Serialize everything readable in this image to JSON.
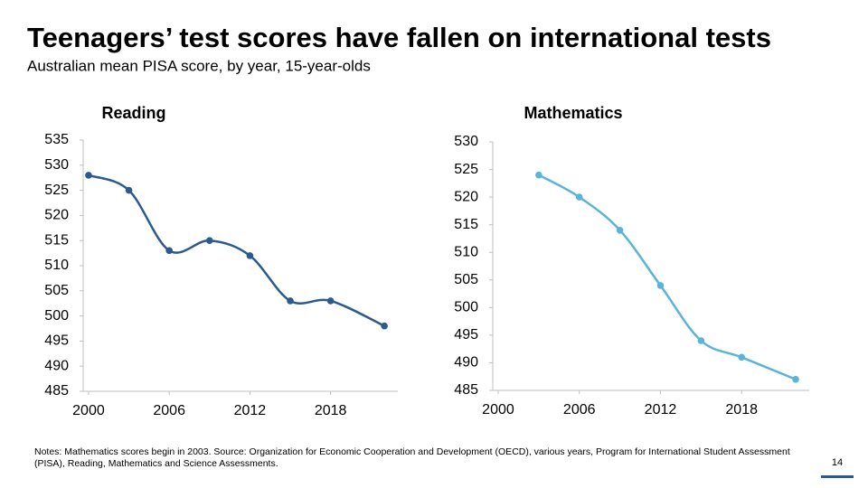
{
  "title": "Teenagers’ test scores have fallen on international tests",
  "subtitle": "Australian mean PISA score, by year, 15-year-olds",
  "notes": "Notes: Mathematics scores begin in 2003. Source: Organization for Economic Cooperation and Development (OECD), various years, Program for International Student Assessment (PISA), Reading, Mathematics and Science Assessments.",
  "page_number": "14",
  "chart_data": [
    {
      "type": "line",
      "title": "Reading",
      "color": "#2b5a8f",
      "x": [
        2000,
        2003,
        2006,
        2009,
        2012,
        2015,
        2018,
        2022
      ],
      "values": [
        528,
        525,
        513,
        515,
        512,
        503,
        503,
        498
      ],
      "xlim": [
        1999.6,
        2023
      ],
      "xticks": [
        2000,
        2006,
        2012,
        2018
      ],
      "ylim": [
        485,
        535
      ],
      "yticks": [
        485,
        490,
        495,
        500,
        505,
        510,
        515,
        520,
        525,
        530,
        535
      ]
    },
    {
      "type": "line",
      "title": "Mathematics",
      "color": "#5ab4d9",
      "x": [
        2003,
        2006,
        2009,
        2012,
        2015,
        2018,
        2022
      ],
      "values": [
        524,
        520,
        514,
        504,
        494,
        491,
        487
      ],
      "xlim": [
        1999.6,
        2023
      ],
      "xticks": [
        2000,
        2006,
        2012,
        2018
      ],
      "ylim": [
        485,
        530
      ],
      "yticks": [
        485,
        490,
        495,
        500,
        505,
        510,
        515,
        520,
        525,
        530
      ]
    }
  ]
}
